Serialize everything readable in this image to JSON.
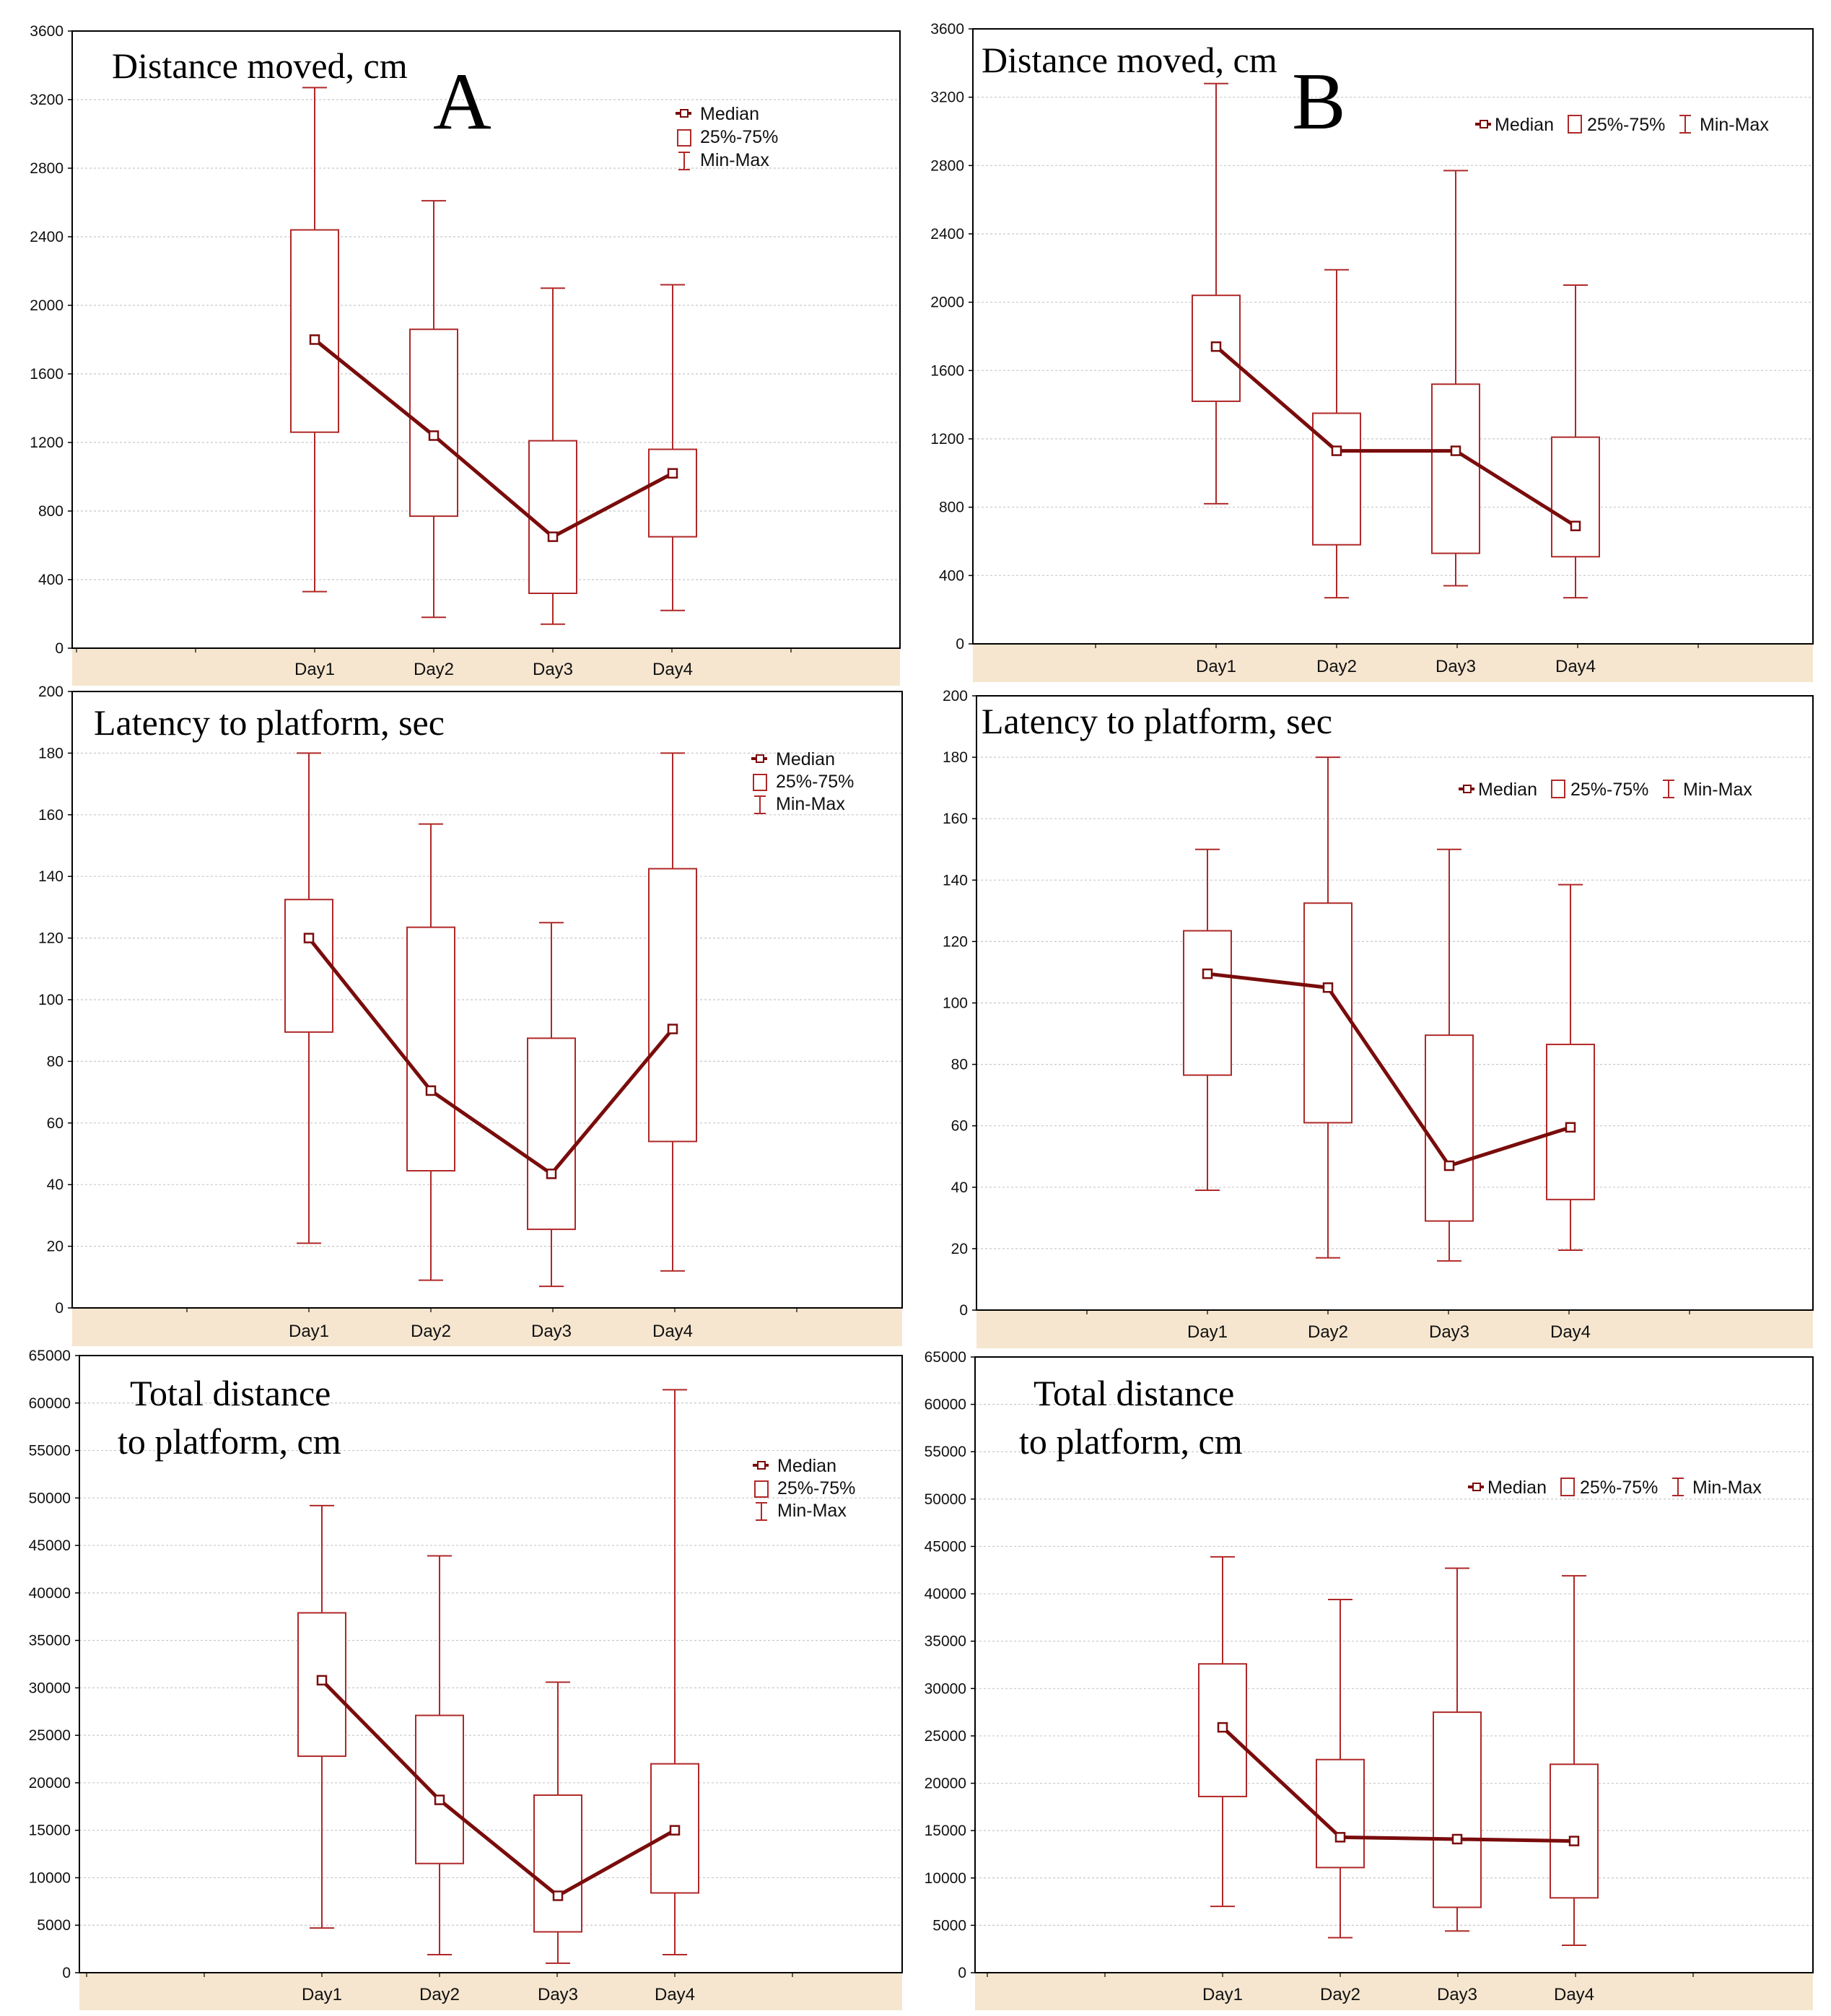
{
  "colors": {
    "series": "#7a0c0c",
    "box": "#b02828",
    "frame": "#000000",
    "grid": "#c8c8c8",
    "strip": "#f6e6cf"
  },
  "legend": {
    "median": "Median",
    "iqr": "25%-75%",
    "range": "Min-Max"
  },
  "chart_data": [
    {
      "id": "A1",
      "type": "boxplot",
      "panel_label": "A",
      "title": "Distance moved, cm",
      "categories": [
        "Day1",
        "Day2",
        "Day3",
        "Day4"
      ],
      "ylim": [
        0,
        3600
      ],
      "yticks": [
        0,
        400,
        800,
        1200,
        1600,
        2000,
        2400,
        2800,
        3200,
        3600
      ],
      "min": [
        330,
        180,
        140,
        220
      ],
      "q1": [
        1260,
        770,
        320,
        650
      ],
      "median": [
        1800,
        1240,
        650,
        1020
      ],
      "q3": [
        2440,
        1860,
        1210,
        1160
      ],
      "max": [
        3270,
        2610,
        2100,
        2120
      ],
      "legend_layout": "stacked"
    },
    {
      "id": "B1",
      "type": "boxplot",
      "panel_label": "B",
      "title": "Distance moved, cm",
      "categories": [
        "Day1",
        "Day2",
        "Day3",
        "Day4"
      ],
      "ylim": [
        0,
        3600
      ],
      "yticks": [
        0,
        400,
        800,
        1200,
        1600,
        2000,
        2400,
        2800,
        3200,
        3600
      ],
      "min": [
        820,
        270,
        340,
        270
      ],
      "q1": [
        1420,
        580,
        530,
        510
      ],
      "median": [
        1740,
        1130,
        1130,
        690
      ],
      "q3": [
        2040,
        1350,
        1520,
        1210
      ],
      "max": [
        3280,
        2190,
        2770,
        2100
      ],
      "legend_layout": "inline"
    },
    {
      "id": "A2",
      "type": "boxplot",
      "panel_label": "",
      "title": "Latency to platform, sec",
      "categories": [
        "Day1",
        "Day2",
        "Day3",
        "Day4"
      ],
      "ylim": [
        0,
        200
      ],
      "yticks": [
        0,
        20,
        40,
        60,
        80,
        100,
        120,
        140,
        160,
        180,
        200
      ],
      "min": [
        21,
        9,
        7,
        12
      ],
      "q1": [
        89.5,
        44.5,
        25.5,
        54
      ],
      "median": [
        120,
        70.5,
        43.5,
        90.5
      ],
      "q3": [
        132.5,
        123.5,
        87.5,
        142.5
      ],
      "max": [
        180,
        157,
        125,
        180
      ],
      "legend_layout": "stacked"
    },
    {
      "id": "B2",
      "type": "boxplot",
      "panel_label": "",
      "title": "Latency to platform, sec",
      "categories": [
        "Day1",
        "Day2",
        "Day3",
        "Day4"
      ],
      "ylim": [
        0,
        200
      ],
      "yticks": [
        0,
        20,
        40,
        60,
        80,
        100,
        120,
        140,
        160,
        180,
        200
      ],
      "min": [
        39,
        17,
        16,
        19.5
      ],
      "q1": [
        76.5,
        61,
        29,
        36
      ],
      "median": [
        109.5,
        105,
        47,
        59.5
      ],
      "q3": [
        123.5,
        132.5,
        89.5,
        86.5
      ],
      "max": [
        150,
        180,
        150,
        138.5
      ],
      "legend_layout": "inline"
    },
    {
      "id": "A3",
      "type": "boxplot",
      "panel_label": "",
      "title": "Total distance|to platform, cm",
      "categories": [
        "Day1",
        "Day2",
        "Day3",
        "Day4"
      ],
      "ylim": [
        0,
        65000
      ],
      "yticks": [
        0,
        5000,
        10000,
        15000,
        20000,
        25000,
        30000,
        35000,
        40000,
        45000,
        50000,
        55000,
        60000,
        65000
      ],
      "min": [
        4700,
        1900,
        1000,
        1900
      ],
      "q1": [
        22800,
        11500,
        4300,
        8400
      ],
      "median": [
        30800,
        18200,
        8100,
        15000
      ],
      "q3": [
        37900,
        27100,
        18700,
        22000
      ],
      "max": [
        49200,
        43900,
        30600,
        61400
      ],
      "legend_layout": "stacked"
    },
    {
      "id": "B3",
      "type": "boxplot",
      "panel_label": "",
      "title": "Total distance|to platform, cm",
      "categories": [
        "Day1",
        "Day2",
        "Day3",
        "Day4"
      ],
      "ylim": [
        0,
        65000
      ],
      "yticks": [
        0,
        5000,
        10000,
        15000,
        20000,
        25000,
        30000,
        35000,
        40000,
        45000,
        50000,
        55000,
        60000,
        65000
      ],
      "min": [
        7000,
        3700,
        4400,
        2900
      ],
      "q1": [
        18600,
        11100,
        6900,
        7900
      ],
      "median": [
        25900,
        14300,
        14100,
        13900
      ],
      "q3": [
        32600,
        22500,
        27500,
        22000
      ],
      "max": [
        43900,
        39400,
        42700,
        41900
      ],
      "legend_layout": "inline"
    }
  ]
}
